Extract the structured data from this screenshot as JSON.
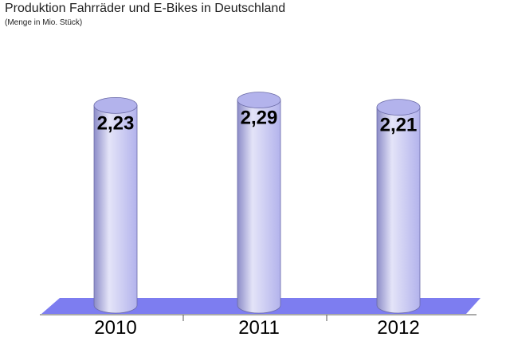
{
  "chart_data": {
    "type": "bar",
    "title": "Produktion Fahrräder und E-Bikes in Deutschland",
    "subtitle": "(Menge in Mio. Stück)",
    "categories": [
      "2010",
      "2011",
      "2012"
    ],
    "values": [
      2.23,
      2.29,
      2.21
    ],
    "value_labels": [
      "2,23",
      "2,29",
      "2,21"
    ],
    "xlabel": "",
    "ylabel": "",
    "ylim": [
      0,
      2.5
    ],
    "grid": false,
    "legend": "none",
    "bar_style": "3d-cylinder",
    "colors": {
      "bar_fill": "#b3b3ec",
      "bar_highlight": "#e4e4f8",
      "bar_shadow": "#8c8cc8",
      "floor": "#7d7df0"
    }
  }
}
